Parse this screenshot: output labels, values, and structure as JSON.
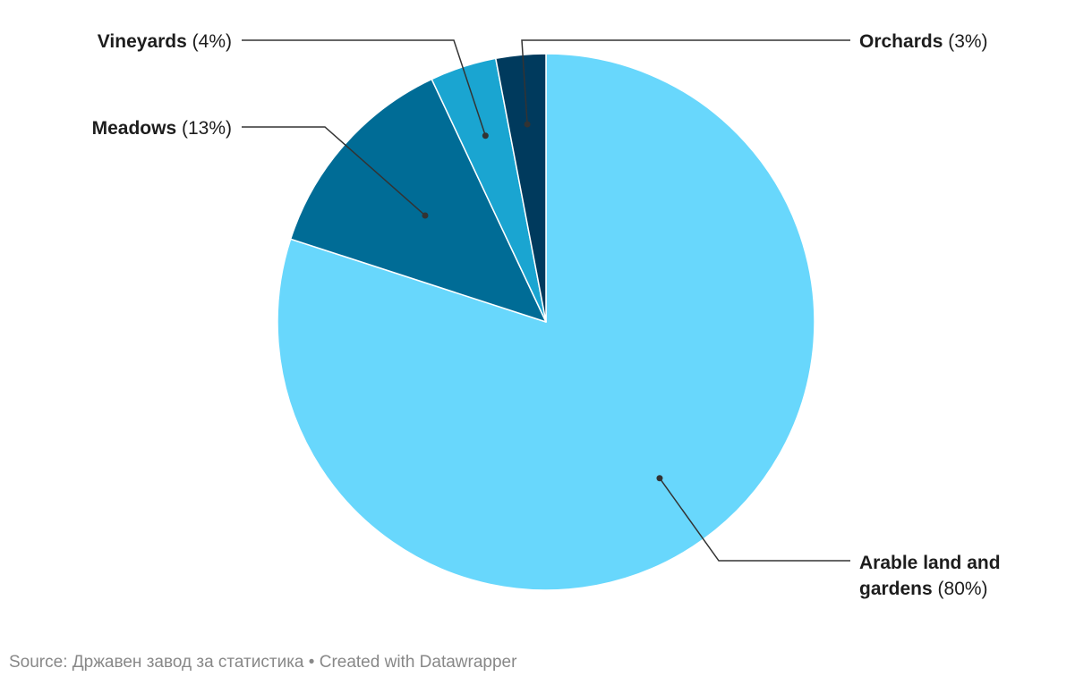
{
  "chart_data": {
    "type": "pie",
    "slices": [
      {
        "name": "Arable land and gardens",
        "value": 80,
        "value_label": "(80%)",
        "color": "#68d7fc",
        "label_lines": [
          "Arable land and",
          "gardens"
        ]
      },
      {
        "name": "Meadows",
        "value": 13,
        "value_label": "(13%)",
        "color": "#006c96",
        "label_lines": [
          "Meadows"
        ]
      },
      {
        "name": "Vineyards",
        "value": 4,
        "value_label": "(4%)",
        "color": "#1aa5d1",
        "label_lines": [
          "Vineyards"
        ]
      },
      {
        "name": "Orchards",
        "value": 3,
        "value_label": "(3%)",
        "color": "#003a5d",
        "label_lines": [
          "Orchards"
        ]
      }
    ]
  },
  "footer": {
    "source": "Source: Државен завод за статистика",
    "separator": " • ",
    "created": "Created with Datawrapper"
  }
}
